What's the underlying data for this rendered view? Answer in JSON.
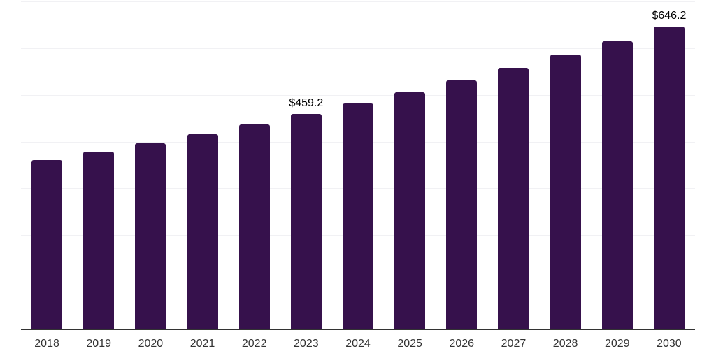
{
  "chart_data": {
    "type": "bar",
    "title": "",
    "xlabel": "",
    "ylabel": "",
    "categories": [
      "2018",
      "2019",
      "2020",
      "2021",
      "2022",
      "2023",
      "2024",
      "2025",
      "2026",
      "2027",
      "2028",
      "2029",
      "2030"
    ],
    "values": [
      359.8,
      377.8,
      396.7,
      416.5,
      437.3,
      459.2,
      482.2,
      506.3,
      531.6,
      558.2,
      586.1,
      615.4,
      646.2
    ],
    "labels": {
      "2023": "$459.2",
      "2030": "$646.2"
    },
    "ylim": [
      0,
      700
    ],
    "gridline_step": 100,
    "grid": "on",
    "legend": "none",
    "y_axis_tick_labels": "none",
    "colors": {
      "bar": "#36114C",
      "gridline": "#f1f1f4",
      "axis": "#333333",
      "tick_label": "#333333",
      "value_label": "#000000",
      "background": "#ffffff"
    }
  }
}
